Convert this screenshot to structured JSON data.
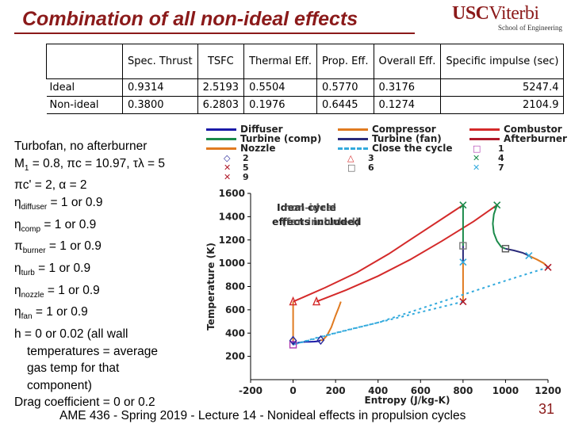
{
  "slide": {
    "title": "Combination of all non-ideal effects",
    "footer": "AME 436 - Spring 2019 - Lecture 14 - Nonideal effects in propulsion cycles",
    "page_number": "31"
  },
  "logo": {
    "main": "USC",
    "sub": "Viterbi",
    "school": "School of Engineering"
  },
  "table": {
    "headers": [
      "Spec. Thrust",
      "TSFC",
      "Thermal Eff.",
      "Prop. Eff.",
      "Overall Eff.",
      "Specific impulse (sec)"
    ],
    "rows": [
      {
        "label": "Ideal",
        "values": [
          "0.9314",
          "2.5193",
          "0.5504",
          "0.5770",
          "0.3176",
          "5247.4"
        ]
      },
      {
        "label": "Non-ideal",
        "values": [
          "0.3800",
          "6.2803",
          "0.1976",
          "0.6445",
          "0.1274",
          "2104.9"
        ]
      }
    ]
  },
  "params": {
    "l1": "Turbofan, no afterburner",
    "l2a": "M",
    "l2sub": "1",
    "l2b": " = 0.8, πc = 10.97, τλ = 5",
    "l3": "πc' = 2, α = 2",
    "l4a": "η",
    "l4sub": "diffuser",
    "l4b": " = 1 or 0.9",
    "l5a": "η",
    "l5sub": "comp",
    "l5b": " = 1 or 0.9",
    "l6a": "π",
    "l6sub": "burner",
    "l6b": " = 1 or 0.9",
    "l7a": "η",
    "l7sub": "turb",
    "l7b": " = 1 or 0.9",
    "l8a": "η",
    "l8sub": "nozzle",
    "l8b": " = 1 or 0.9",
    "l9a": "η",
    "l9sub": "fan",
    "l9b": " = 1 or 0.9",
    "l10": "h = 0 or 0.02 (all wall",
    "l11": "temperatures = average",
    "l12": "gas temp for that",
    "l13": "component)",
    "l14": "Drag coefficient  = 0 or 0.2"
  },
  "legend": {
    "diffuser": "Diffuser",
    "compressor": "Compressor",
    "combustor": "Combustor",
    "turbine_comp": "Turbine (comp)",
    "turbine_fan": "Turbine (fan)",
    "afterburner": "Afterburner",
    "nozzle": "Nozzle",
    "close": "Close the cycle",
    "state_labels": [
      "1",
      "2",
      "3",
      "4",
      "5",
      "6",
      "7",
      "9"
    ]
  },
  "colors": {
    "title": "#8b1a1a",
    "diffuser": "#1a1aa8",
    "compressor": "#e07a20",
    "combustor": "#d42a2a",
    "turbine_comp": "#1a8a4a",
    "turbine_fan": "#2a2a7a",
    "afterburner": "#b01a2a",
    "nozzle": "#e07a20",
    "close": "#33aadd"
  },
  "chart_data": {
    "type": "line",
    "xlabel": "Entropy (J/kg-K)",
    "ylabel": "Temperature (K)",
    "xlim": [
      -200,
      1200
    ],
    "ylim": [
      0,
      1600
    ],
    "xticks": [
      "-200",
      "0",
      "200",
      "400",
      "600",
      "800",
      "1000",
      "1200"
    ],
    "yticks": [
      "200",
      "400",
      "600",
      "800",
      "1000",
      "1200",
      "1400",
      "1600"
    ],
    "annotation": "Ideal cycle and non-ideal effects included (text overlapping)",
    "series": [
      {
        "name": "Diffuser",
        "key": "diffuser",
        "dash": false,
        "x": [
          0,
          0
        ],
        "y": [
          300,
          335
        ]
      },
      {
        "name": "Diffuser (non-ideal)",
        "key": "diffuser",
        "dash": false,
        "x": [
          0,
          10,
          25,
          40,
          60,
          80,
          100,
          120,
          130
        ],
        "y": [
          300,
          310,
          318,
          322,
          325,
          325,
          327,
          330,
          340
        ]
      },
      {
        "name": "Compressor",
        "key": "compressor",
        "dash": false,
        "x": [
          0,
          0
        ],
        "y": [
          335,
          670
        ]
      },
      {
        "name": "Compressor (non-ideal)",
        "key": "compressor",
        "dash": false,
        "x": [
          130,
          140,
          160,
          180,
          200,
          215,
          225
        ],
        "y": [
          340,
          340,
          380,
          450,
          550,
          620,
          670
        ]
      },
      {
        "name": "Combustor",
        "key": "combustor",
        "dash": false,
        "x": [
          0,
          150,
          300,
          450,
          600,
          750,
          800
        ],
        "y": [
          670,
          790,
          920,
          1080,
          1260,
          1440,
          1500
        ]
      },
      {
        "name": "Combustor (non-ideal)",
        "key": "combustor",
        "dash": false,
        "x": [
          110,
          250,
          400,
          550,
          700,
          850,
          960
        ],
        "y": [
          670,
          770,
          890,
          1030,
          1190,
          1360,
          1500
        ]
      },
      {
        "name": "Turbine (comp)",
        "key": "turbine_comp",
        "dash": false,
        "x": [
          800,
          800
        ],
        "y": [
          1500,
          1150
        ]
      },
      {
        "name": "Turbine (comp) (non-ideal)",
        "key": "turbine_comp",
        "dash": false,
        "x": [
          960,
          945,
          940,
          945,
          960,
          980,
          1000
        ],
        "y": [
          1500,
          1420,
          1340,
          1260,
          1190,
          1140,
          1125
        ]
      },
      {
        "name": "Turbine (fan)",
        "key": "turbine_fan",
        "dash": false,
        "x": [
          800,
          800
        ],
        "y": [
          1150,
          1010
        ]
      },
      {
        "name": "Turbine (fan) (non-ideal)",
        "key": "turbine_fan",
        "dash": false,
        "x": [
          1000,
          1040,
          1080,
          1110
        ],
        "y": [
          1125,
          1110,
          1090,
          1065
        ]
      },
      {
        "name": "Nozzle",
        "key": "nozzle",
        "dash": false,
        "x": [
          800,
          800
        ],
        "y": [
          1010,
          670
        ]
      },
      {
        "name": "Nozzle (non-ideal)",
        "key": "nozzle",
        "dash": false,
        "x": [
          1110,
          1150,
          1180,
          1200
        ],
        "y": [
          1065,
          1030,
          1000,
          965
        ]
      },
      {
        "name": "Close the cycle",
        "key": "close",
        "dash": true,
        "x": [
          800,
          600,
          400,
          250,
          100,
          0
        ],
        "y": [
          670,
          580,
          490,
          425,
          355,
          300
        ]
      },
      {
        "name": "Close the cycle (non-ideal)",
        "key": "close",
        "dash": true,
        "x": [
          1200,
          1000,
          800,
          600,
          400,
          200,
          0
        ],
        "y": [
          965,
          850,
          730,
          610,
          490,
          400,
          300
        ]
      }
    ],
    "markers": [
      {
        "label": "1",
        "symbol": "square",
        "color": "#b03ab0",
        "x": 0,
        "y": 300
      },
      {
        "label": "2",
        "symbol": "diamond",
        "color": "#2a2a9a",
        "x": 0,
        "y": 335
      },
      {
        "label": "2",
        "symbol": "diamond",
        "color": "#2a2a9a",
        "x": 130,
        "y": 340
      },
      {
        "label": "3",
        "symbol": "triangle",
        "color": "#d42a2a",
        "x": 0,
        "y": 670
      },
      {
        "label": "3",
        "symbol": "triangle",
        "color": "#d42a2a",
        "x": 110,
        "y": 670
      },
      {
        "label": "4",
        "symbol": "x",
        "color": "#1a8a4a",
        "x": 800,
        "y": 1500
      },
      {
        "label": "4",
        "symbol": "x",
        "color": "#1a8a4a",
        "x": 960,
        "y": 1500
      },
      {
        "label": "5",
        "symbol": "x",
        "color": "#b01a2a",
        "x": 800,
        "y": 670
      },
      {
        "label": "6",
        "symbol": "square",
        "color": "#7a7a7a",
        "x": 800,
        "y": 1150
      },
      {
        "label": "6",
        "symbol": "square",
        "color": "#555555",
        "x": 1000,
        "y": 1125
      },
      {
        "label": "7",
        "symbol": "x",
        "color": "#33aadd",
        "x": 800,
        "y": 1010
      },
      {
        "label": "7",
        "symbol": "x",
        "color": "#33aadd",
        "x": 1110,
        "y": 1065
      },
      {
        "label": "9",
        "symbol": "x",
        "color": "#b01a2a",
        "x": 1200,
        "y": 965
      }
    ]
  }
}
